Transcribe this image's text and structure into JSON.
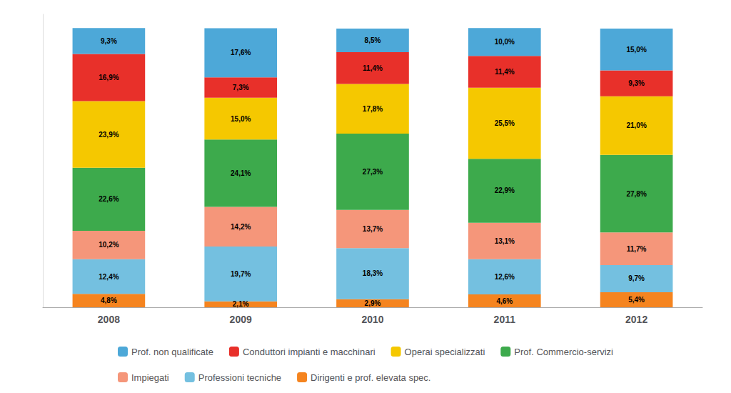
{
  "chart_data": {
    "type": "bar",
    "stacked": true,
    "categories": [
      "2008",
      "2009",
      "2010",
      "2011",
      "2012"
    ],
    "series": [
      {
        "name": "Dirigenti e prof. elevata spec.",
        "color": "#F5841F",
        "values": [
          4.8,
          2.1,
          2.9,
          4.6,
          5.4
        ],
        "value_labels": [
          "4,8%",
          "2,1%",
          "2,9%",
          "4,6%",
          "5,4%"
        ]
      },
      {
        "name": "Professioni tecniche",
        "color": "#74C0E0",
        "values": [
          12.4,
          19.7,
          18.3,
          12.6,
          9.7
        ],
        "value_labels": [
          "12,4%",
          "19,7%",
          "18,3%",
          "12,6%",
          "9,7%"
        ]
      },
      {
        "name": "Impiegati",
        "color": "#F5967A",
        "values": [
          10.2,
          14.2,
          13.7,
          13.1,
          11.7
        ],
        "value_labels": [
          "10,2%",
          "14,2%",
          "13,7%",
          "13,1%",
          "11,7%"
        ]
      },
      {
        "name": "Prof. Commercio-servizi",
        "color": "#3DAA4C",
        "values": [
          22.6,
          24.1,
          27.3,
          22.9,
          27.8
        ],
        "value_labels": [
          "22,6%",
          "24,1%",
          "27,3%",
          "22,9%",
          "27,8%"
        ]
      },
      {
        "name": "Operai specializzati",
        "color": "#F5C800",
        "values": [
          23.9,
          15.0,
          17.8,
          25.5,
          21.0
        ],
        "value_labels": [
          "23,9%",
          "15,0%",
          "17,8%",
          "25,5%",
          "21,0%"
        ]
      },
      {
        "name": "Conduttori impianti e macchinari",
        "color": "#E8302A",
        "values": [
          16.9,
          7.3,
          11.4,
          11.4,
          9.3
        ],
        "value_labels": [
          "16,9%",
          "7,3%",
          "11,4%",
          "11,4%",
          "9,3%"
        ]
      },
      {
        "name": "Prof. non qualificate",
        "color": "#4DA8D8",
        "values": [
          9.3,
          17.6,
          8.5,
          10.0,
          15.0
        ],
        "value_labels": [
          "9,3%",
          "17,6%",
          "8,5%",
          "10,0%",
          "15,0%"
        ]
      }
    ],
    "ylim": [
      0,
      105
    ],
    "tick_labels": "x",
    "data_labels": true,
    "grid": false,
    "legend": "bottom"
  }
}
